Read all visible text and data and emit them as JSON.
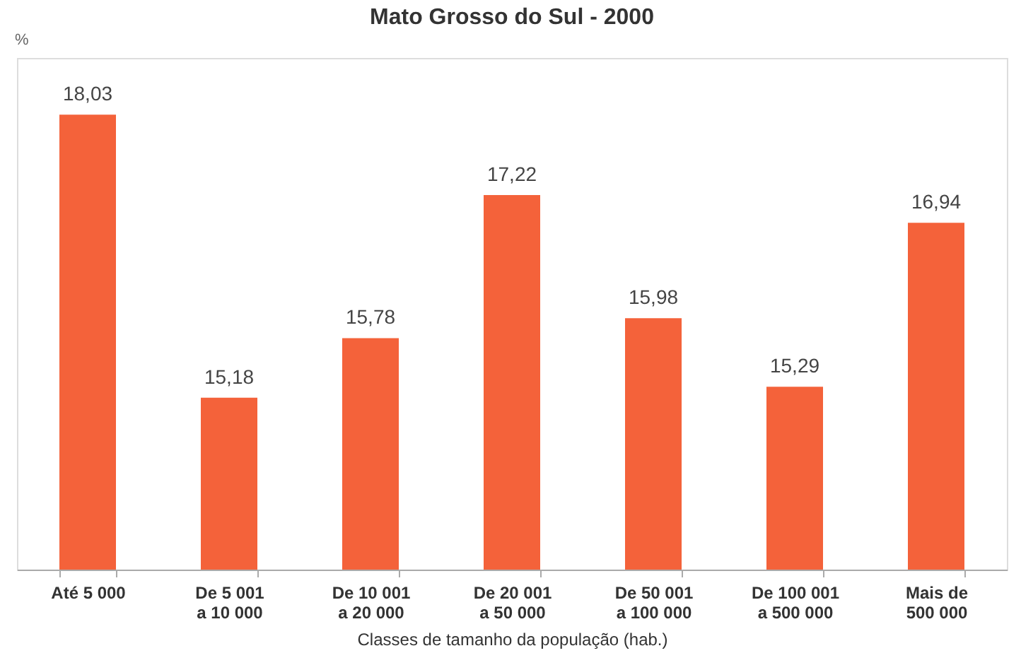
{
  "chart_data": {
    "type": "bar",
    "title": "Mato Grosso do Sul - 2000",
    "ylabel": "%",
    "xlabel": "Classes de tamanho da população (hab.)",
    "categories": [
      "Até 5 000",
      "De 5 001\na 10 000",
      "De 10 001\na 20 000",
      "De 20 001\na 50 000",
      "De 50 001\na 100 000",
      "De 100 001\na 500 000",
      "Mais de\n500 000"
    ],
    "values": [
      18.03,
      15.18,
      15.78,
      17.22,
      15.98,
      15.29,
      16.94
    ],
    "value_labels": [
      "18,03",
      "15,18",
      "15,78",
      "17,22",
      "15,98",
      "15,29",
      "16,94"
    ],
    "color": "#f4623a",
    "ylim": [
      13.45,
      18.6
    ]
  }
}
